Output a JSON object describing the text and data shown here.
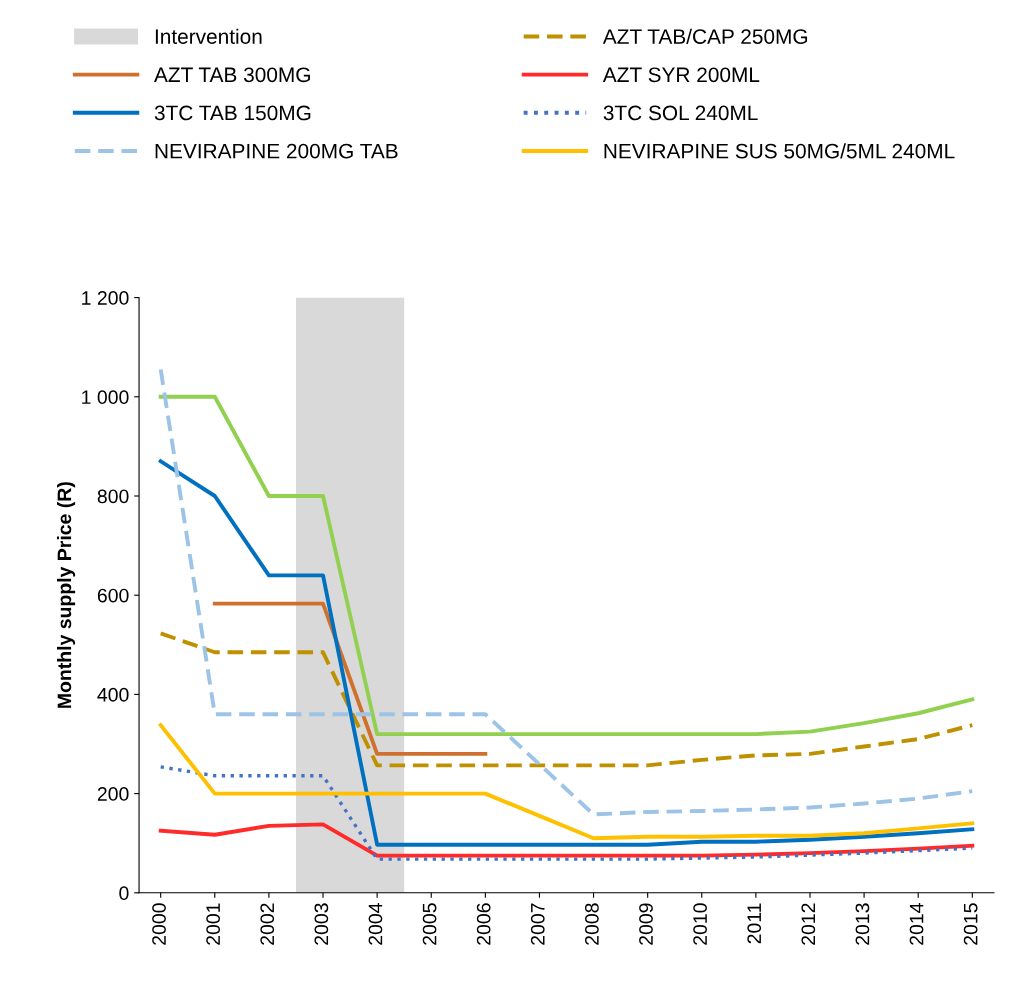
{
  "chart_data": {
    "type": "line",
    "ylabel": "Monthly supply Price (R)",
    "x": [
      2000,
      2001,
      2002,
      2003,
      2004,
      2005,
      2006,
      2007,
      2008,
      2009,
      2010,
      2011,
      2012,
      2013,
      2014,
      2015
    ],
    "xlim": [
      1999.6,
      2015.4
    ],
    "xticks": [
      2000,
      2001,
      2002,
      2003,
      2004,
      2005,
      2006,
      2007,
      2008,
      2009,
      2010,
      2011,
      2012,
      2013,
      2014,
      2015
    ],
    "ylim": [
      0,
      1200
    ],
    "yticks": [
      0,
      200,
      400,
      600,
      800,
      {
        "value": 1000,
        "label": "1 000"
      },
      {
        "value": 1200,
        "label": "1 200"
      }
    ],
    "grid": false,
    "legend": "top",
    "marker": "none",
    "bands": [
      {
        "axis": "x",
        "from": 2002.5,
        "to": 2004.5,
        "label": "Intervention",
        "color": "#d9d9d9"
      }
    ],
    "series": [
      {
        "name": "AZT TAB/CAP 250MG",
        "color": "#bf9000",
        "line_style": "dashed",
        "values": [
          523,
          485,
          485,
          485,
          257,
          257,
          257,
          257,
          257,
          257,
          268,
          277,
          280,
          295,
          310,
          338
        ]
      },
      {
        "name": "AZT TAB 300MG",
        "color": "#d0702f",
        "line_style": "solid",
        "values": [
          null,
          583,
          583,
          583,
          280,
          280,
          280,
          null,
          null,
          null,
          null,
          null,
          null,
          null,
          null,
          null
        ]
      },
      {
        "name": "AZT SYR 200ML",
        "color": "#ff2a2a",
        "line_style": "solid",
        "values": [
          125,
          117,
          135,
          138,
          75,
          75,
          75,
          75,
          75,
          75,
          75,
          77,
          80,
          84,
          89,
          95
        ]
      },
      {
        "name": "3TC TAB 150MG",
        "color": "#0070c0",
        "line_style": "solid",
        "values": [
          870,
          800,
          640,
          640,
          97,
          97,
          97,
          97,
          97,
          97,
          103,
          103,
          107,
          113,
          120,
          128
        ]
      },
      {
        "name": "3TC SOL 240ML",
        "color": "#4472c4",
        "line_style": "dotted",
        "values": [
          254,
          236,
          236,
          236,
          68,
          68,
          68,
          68,
          68,
          68,
          70,
          72,
          76,
          80,
          85,
          90
        ]
      },
      {
        "color": "#92d050",
        "line_style": "solid",
        "values": [
          1000,
          1000,
          800,
          800,
          320,
          320,
          320,
          320,
          320,
          320,
          320,
          320,
          325,
          342,
          362,
          390
        ]
      },
      {
        "name": "NEVIRAPINE 200MG TAB",
        "color": "#9dc3e6",
        "line_style": "dashed",
        "values": [
          1055,
          360,
          360,
          360,
          360,
          360,
          360,
          259,
          158,
          163,
          165,
          168,
          172,
          180,
          190,
          205
        ]
      },
      {
        "name": "NEVIRAPINE SUS 50MG/5ML 240ML",
        "color": "#ffc000",
        "line_style": "solid",
        "values": [
          338,
          200,
          200,
          200,
          200,
          200,
          200,
          155,
          110,
          113,
          113,
          115,
          115,
          120,
          130,
          140
        ]
      }
    ]
  }
}
